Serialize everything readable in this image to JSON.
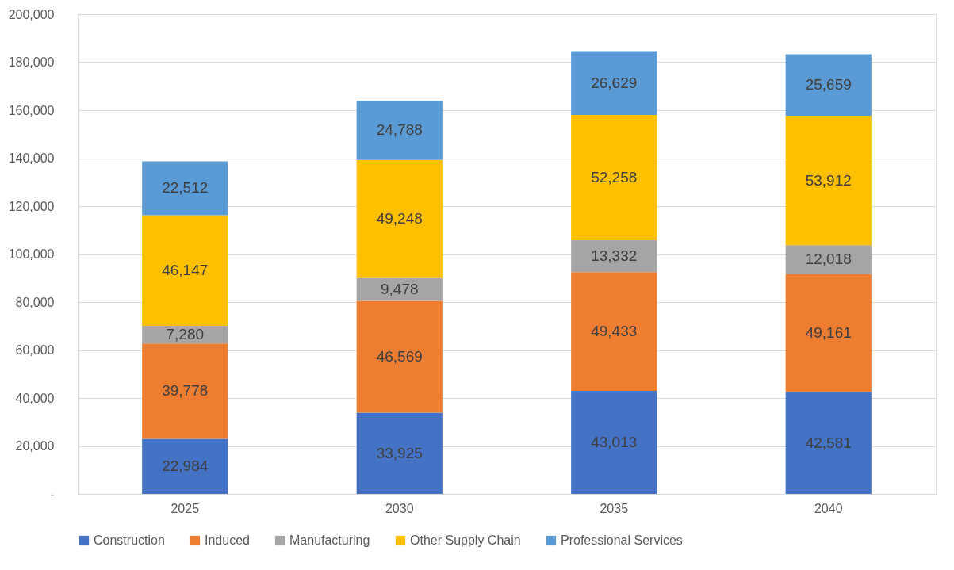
{
  "chart_data": {
    "type": "bar",
    "stacked": true,
    "grid": "y",
    "legend": "bottom",
    "categories": [
      "2025",
      "2030",
      "2035",
      "2040"
    ],
    "series": [
      {
        "name": "Construction",
        "color": "#4472c4",
        "values": [
          22984,
          33925,
          43013,
          42581
        ],
        "value_labels": [
          "22,984",
          "33,925",
          "43,013",
          "42,581"
        ]
      },
      {
        "name": "Induced",
        "color": "#ed7d31",
        "values": [
          39778,
          46569,
          49433,
          49161
        ],
        "value_labels": [
          "39,778",
          "46,569",
          "49,433",
          "49,161"
        ]
      },
      {
        "name": "Manufacturing",
        "color": "#a5a5a5",
        "values": [
          7280,
          9478,
          13332,
          12018
        ],
        "value_labels": [
          "7,280",
          "9,478",
          "13,332",
          "12,018"
        ]
      },
      {
        "name": "Other Supply Chain",
        "color": "#ffc000",
        "values": [
          46147,
          49248,
          52258,
          53912
        ],
        "value_labels": [
          "46,147",
          "49,248",
          "52,258",
          "53,912"
        ]
      },
      {
        "name": "Professional Services",
        "color": "#5b9bd5",
        "values": [
          22512,
          24788,
          26629,
          25659
        ],
        "value_labels": [
          "22,512",
          "24,788",
          "26,629",
          "25,659"
        ]
      }
    ],
    "ylim": [
      0,
      200000
    ],
    "yticks": [
      {
        "value": 0,
        "label": "-"
      },
      {
        "value": 20000,
        "label": "20,000"
      },
      {
        "value": 40000,
        "label": "40,000"
      },
      {
        "value": 60000,
        "label": "60,000"
      },
      {
        "value": 80000,
        "label": "80,000"
      },
      {
        "value": 100000,
        "label": "100,000"
      },
      {
        "value": 120000,
        "label": "120,000"
      },
      {
        "value": 140000,
        "label": "140,000"
      },
      {
        "value": 160000,
        "label": "160,000"
      },
      {
        "value": 180000,
        "label": "180,000"
      },
      {
        "value": 200000,
        "label": "200,000"
      }
    ]
  }
}
